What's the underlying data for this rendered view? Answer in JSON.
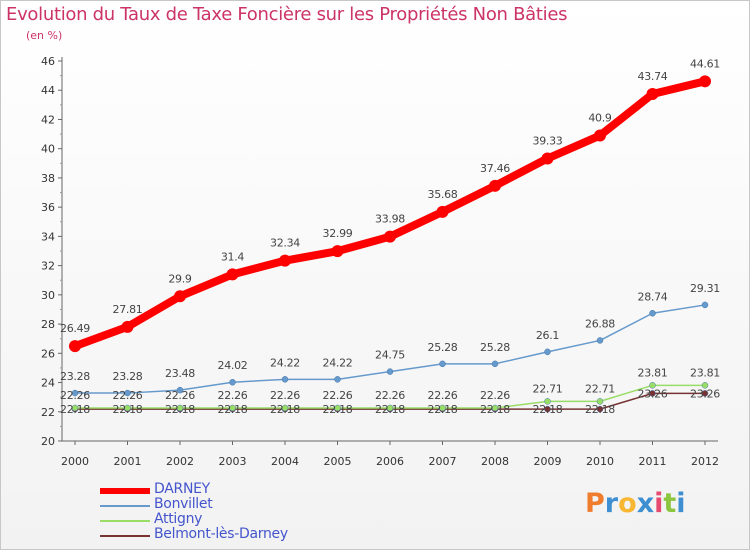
{
  "title": "Evolution du Taux de Taxe Foncière sur les Propriétés Non Bâties",
  "unit_label": "(en %)",
  "logo": {
    "text": "Proxiti",
    "letters": [
      {
        "char": "P",
        "color": "#f07d2e"
      },
      {
        "char": "r",
        "color": "#3d8fd1"
      },
      {
        "char": "o",
        "color": "#f7b733"
      },
      {
        "char": "x",
        "color": "#3d8fd1"
      },
      {
        "char": "i",
        "color": "#e64a6e"
      },
      {
        "char": "t",
        "color": "#8cc63f"
      },
      {
        "char": "i",
        "color": "#3d8fd1"
      }
    ]
  },
  "chart_data": {
    "type": "line",
    "categories": [
      "2000",
      "2001",
      "2002",
      "2003",
      "2004",
      "2005",
      "2006",
      "2007",
      "2008",
      "2009",
      "2010",
      "2011",
      "2012"
    ],
    "ylim": [
      20,
      46
    ],
    "yticks": [
      20,
      22,
      24,
      26,
      28,
      30,
      32,
      34,
      36,
      38,
      40,
      42,
      44,
      46
    ],
    "grid": false,
    "legend_position": "bottom-left",
    "series": [
      {
        "name": "DARNEY",
        "color": "#ff0000",
        "values": [
          26.49,
          27.81,
          29.9,
          31.4,
          32.34,
          32.99,
          33.98,
          35.68,
          37.46,
          39.33,
          40.9,
          43.74,
          44.61
        ],
        "labels": [
          "26.49",
          "27.81",
          "29.9",
          "31.4",
          "32.34",
          "32.99",
          "33.98",
          "35.68",
          "37.46",
          "39.33",
          "40.9",
          "43.74",
          "44.61"
        ]
      },
      {
        "name": "Bonvillet",
        "color": "#6699cc",
        "values": [
          23.28,
          23.28,
          23.48,
          24.02,
          24.22,
          24.22,
          24.75,
          25.28,
          25.28,
          26.1,
          26.88,
          28.74,
          29.31
        ],
        "labels": [
          "23.28",
          "23.28",
          "23.48",
          "24.02",
          "24.22",
          "24.22",
          "24.75",
          "25.28",
          "25.28",
          "26.1",
          "26.88",
          "28.74",
          "29.31"
        ]
      },
      {
        "name": "Attigny",
        "color": "#99dd66",
        "values": [
          22.26,
          22.26,
          22.26,
          22.26,
          22.26,
          22.26,
          22.26,
          22.26,
          22.26,
          22.71,
          22.71,
          23.81,
          23.81
        ],
        "labels": [
          "22.26",
          "22.26",
          "22.26",
          "22.26",
          "22.26",
          "22.26",
          "22.26",
          "22.26",
          "22.26",
          "22.71",
          "22.71",
          "23.81",
          "23.81"
        ]
      },
      {
        "name": "Belmont-lès-Darney",
        "color": "#773333",
        "values": [
          22.18,
          22.18,
          22.18,
          22.18,
          22.18,
          22.18,
          22.18,
          22.18,
          22.18,
          22.18,
          22.18,
          23.26,
          23.26
        ],
        "labels": [
          "22.18",
          "22.18",
          "22.18",
          "22.18",
          "22.18",
          "22.18",
          "22.18",
          "22.18",
          "22.18",
          "22.18",
          "22.18",
          "23.26",
          "23.26"
        ]
      }
    ]
  }
}
